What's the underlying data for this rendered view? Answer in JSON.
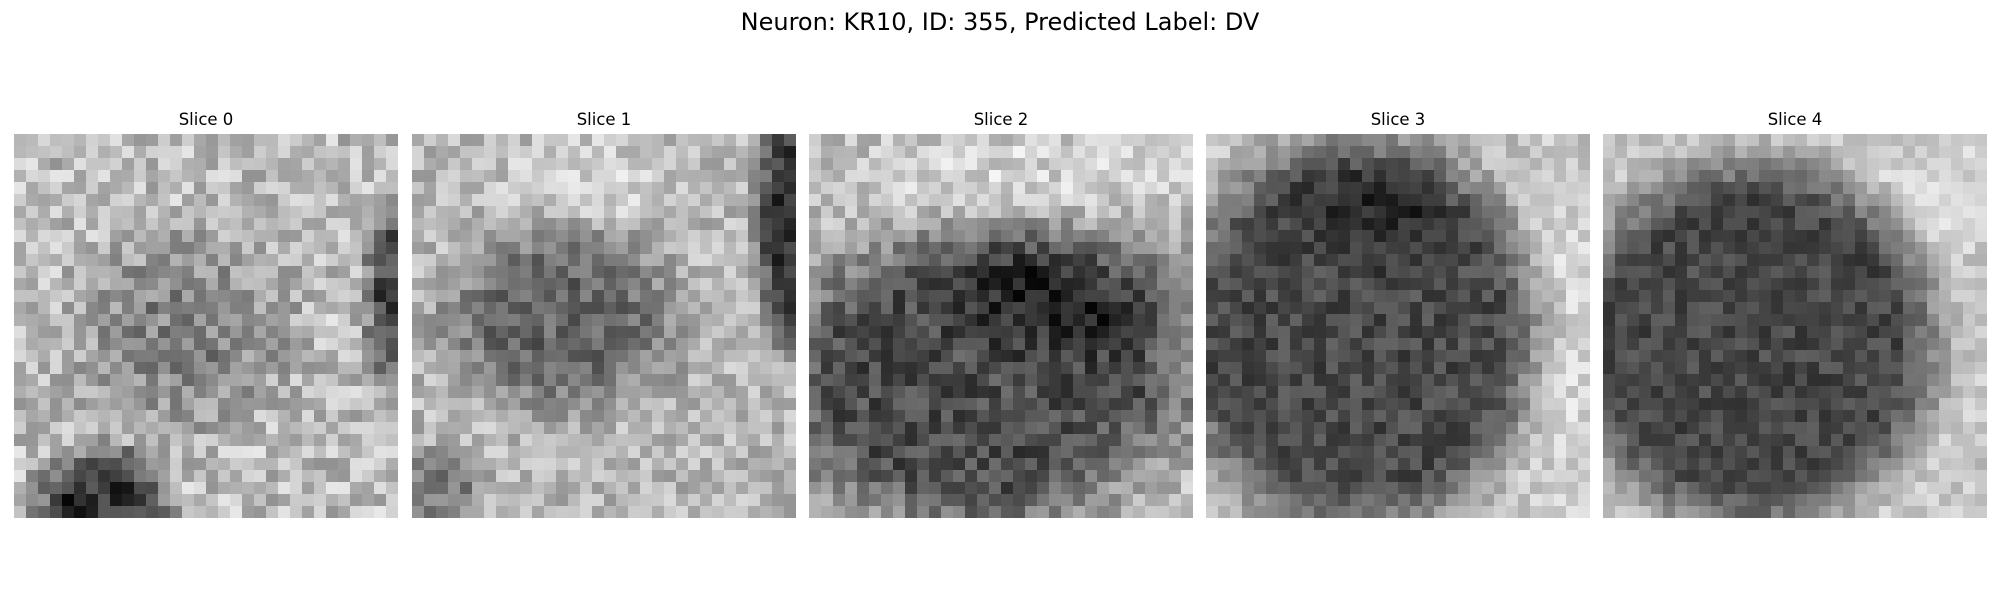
{
  "figure": {
    "title": "Neuron: KR10, ID: 355, Predicted Label: DV",
    "colormap": "gray",
    "background": "#ffffff"
  },
  "slices": [
    {
      "title": "Slice 0",
      "content": "noisy light background; faint dark blob at center; dark region bottom-left; dark strip right edge"
    },
    {
      "title": "Slice 1",
      "content": "medium-dark oval blob center-left; dark strip at right edge; light band at top"
    },
    {
      "title": "Slice 2",
      "content": "large dark cell body filling lower portion; light band across top"
    },
    {
      "title": "Slice 3",
      "content": "large dark round cell body; light crescent at right edge"
    },
    {
      "title": "Slice 4",
      "content": "large dark round cell body; light background at top-right and right edge"
    }
  ]
}
